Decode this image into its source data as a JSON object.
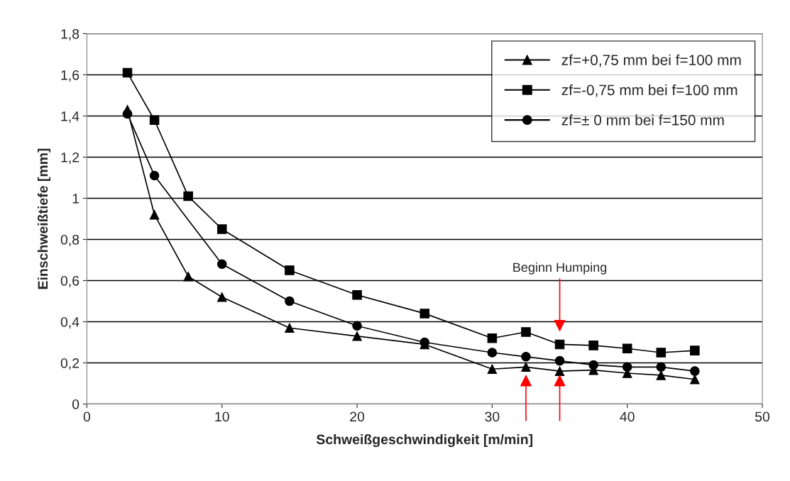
{
  "chart_data": {
    "type": "line",
    "xlabel": "Schweißgeschwindigkeit [m/min]",
    "ylabel": "Einschweißtiefe [mm]",
    "xlim": [
      0,
      50
    ],
    "xticks": [
      0,
      10,
      20,
      30,
      40,
      50
    ],
    "ylim": [
      0,
      1.8
    ],
    "yticks": [
      0,
      {
        "value": 0.2,
        "label": "0,2"
      },
      {
        "value": 0.4,
        "label": "0,4"
      },
      {
        "value": 0.6,
        "label": "0,6"
      },
      {
        "value": 0.8,
        "label": "0,8"
      },
      1,
      {
        "value": 1.2,
        "label": "1,2"
      },
      {
        "value": 1.4,
        "label": "1,4"
      },
      {
        "value": 1.6,
        "label": "1,6"
      },
      {
        "value": 1.8,
        "label": "1,8"
      }
    ],
    "grid": "y",
    "legend": "top right",
    "series": [
      {
        "name": "zf=+0,75 mm bei f=100 mm",
        "color": "#000000",
        "marker": "triangle",
        "x": [
          3,
          5,
          7.5,
          10,
          15,
          20,
          25,
          30,
          32.5,
          35,
          37.5,
          40,
          42.5,
          45
        ],
        "values": [
          1.43,
          0.92,
          0.62,
          0.52,
          0.37,
          0.33,
          0.29,
          0.17,
          0.18,
          0.16,
          0.165,
          0.15,
          0.14,
          0.12
        ]
      },
      {
        "name": "zf=-0,75 mm bei f=100 mm",
        "color": "#000000",
        "marker": "square",
        "x": [
          3,
          5,
          7.5,
          10,
          15,
          20,
          25,
          30,
          32.5,
          35,
          37.5,
          40,
          42.5,
          45
        ],
        "values": [
          1.61,
          1.38,
          1.01,
          0.85,
          0.65,
          0.53,
          0.44,
          0.32,
          0.35,
          0.29,
          0.285,
          0.27,
          0.25,
          0.26
        ]
      },
      {
        "name": "zf=± 0 mm bei f=150 mm",
        "color": "#000000",
        "marker": "circle",
        "x": [
          3,
          5,
          10,
          15,
          20,
          25,
          30,
          32.5,
          35,
          37.5,
          40,
          42.5,
          45
        ],
        "values": [
          1.41,
          1.11,
          0.68,
          0.5,
          0.38,
          0.3,
          0.25,
          0.23,
          0.21,
          0.19,
          0.18,
          0.18,
          0.16
        ]
      }
    ],
    "annotations": [
      "Beginn Humping"
    ]
  }
}
